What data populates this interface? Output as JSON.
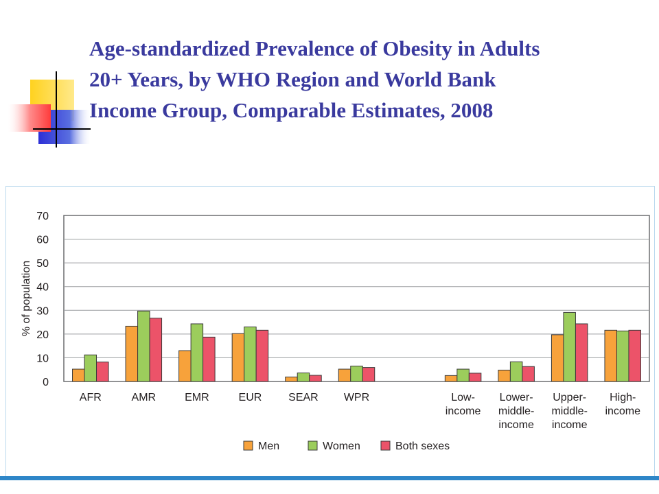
{
  "slide": {
    "title_lines": [
      "Age-standardized Prevalence of Obesity in Adults",
      "20+ Years, by WHO Region and World Bank",
      "Income Group, Comparable Estimates, 2008"
    ]
  },
  "colors": {
    "title": "#3a3a9e",
    "men": "#f7a23b",
    "women": "#9ccd5c",
    "both": "#ec5369",
    "accent_bar": "#2e86c8"
  },
  "chart_data": {
    "type": "bar",
    "ylabel": "% of population",
    "ylim": [
      0,
      70
    ],
    "yticks": [
      0,
      10,
      20,
      30,
      40,
      50,
      60,
      70
    ],
    "grid": true,
    "legend_position": "bottom",
    "categories": [
      [
        "AFR"
      ],
      [
        "AMR"
      ],
      [
        "EMR"
      ],
      [
        "EUR"
      ],
      [
        "SEAR"
      ],
      [
        "WPR"
      ],
      [],
      [
        "Low-",
        "income"
      ],
      [
        "Lower-",
        "middle-",
        "income"
      ],
      [
        "Upper-",
        "middle-",
        "income"
      ],
      [
        "High-",
        "income"
      ]
    ],
    "series": [
      {
        "name": "Men",
        "color": "#f7a23b",
        "values": [
          5.2,
          23.3,
          13.0,
          20.2,
          1.9,
          5.2,
          null,
          2.5,
          4.8,
          19.7,
          21.6
        ]
      },
      {
        "name": "Women",
        "color": "#9ccd5c",
        "values": [
          11.2,
          29.7,
          24.3,
          23.0,
          3.6,
          6.5,
          null,
          5.2,
          8.3,
          29.1,
          21.3
        ]
      },
      {
        "name": "Both sexes",
        "color": "#ec5369",
        "values": [
          8.2,
          26.7,
          18.7,
          21.6,
          2.6,
          5.9,
          null,
          3.5,
          6.3,
          24.3,
          21.6
        ]
      }
    ]
  }
}
